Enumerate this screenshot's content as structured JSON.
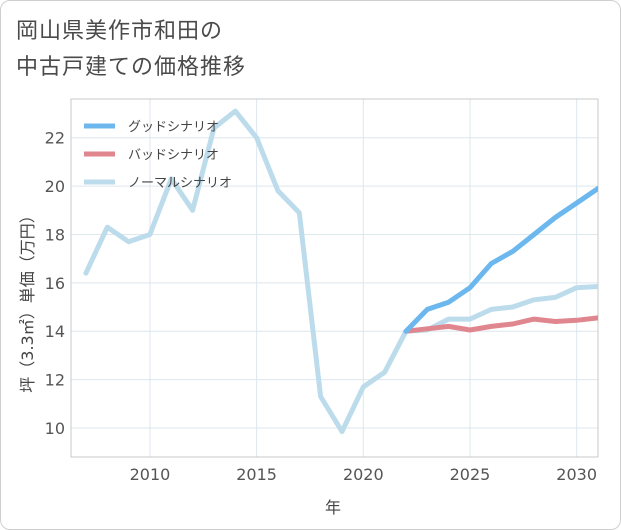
{
  "title": {
    "line1": "岡山県美作市和田の",
    "line2": "中古戸建ての価格推移"
  },
  "chart_data": {
    "type": "line",
    "xlabel": "年",
    "ylabel": "坪（3.3㎡）単価（万円）",
    "xlim": [
      2006.3,
      2031
    ],
    "ylim": [
      8.8,
      23.6
    ],
    "xticks": [
      2010,
      2015,
      2020,
      2025,
      2030
    ],
    "yticks": [
      10,
      12,
      14,
      16,
      18,
      20,
      22
    ],
    "grid": true,
    "legend_position": "top-left",
    "series": [
      {
        "name": "グッドシナリオ",
        "color": "#6cb8ee",
        "x": [
          2022,
          2023,
          2024,
          2025,
          2026,
          2027,
          2028,
          2029,
          2030,
          2031
        ],
        "y": [
          14.0,
          14.9,
          15.2,
          15.8,
          16.8,
          17.3,
          18.0,
          18.7,
          19.3,
          19.9
        ]
      },
      {
        "name": "バッドシナリオ",
        "color": "#e0868f",
        "x": [
          2022,
          2023,
          2024,
          2025,
          2026,
          2027,
          2028,
          2029,
          2030,
          2031
        ],
        "y": [
          14.0,
          14.1,
          14.2,
          14.05,
          14.2,
          14.3,
          14.5,
          14.4,
          14.45,
          14.55
        ]
      },
      {
        "name": "ノーマルシナリオ",
        "color": "#bcdcec",
        "x": [
          2007,
          2008,
          2009,
          2010,
          2011,
          2012,
          2013,
          2014,
          2015,
          2016,
          2017,
          2018,
          2019,
          2020,
          2021,
          2022,
          2023,
          2024,
          2025,
          2026,
          2027,
          2028,
          2029,
          2030,
          2031
        ],
        "y": [
          16.4,
          18.3,
          17.7,
          18.0,
          20.3,
          19.0,
          22.4,
          23.1,
          22.0,
          19.8,
          18.9,
          11.3,
          9.85,
          11.7,
          12.3,
          14.0,
          14.05,
          14.5,
          14.5,
          14.9,
          15.0,
          15.3,
          15.4,
          15.8,
          15.85
        ]
      }
    ]
  }
}
